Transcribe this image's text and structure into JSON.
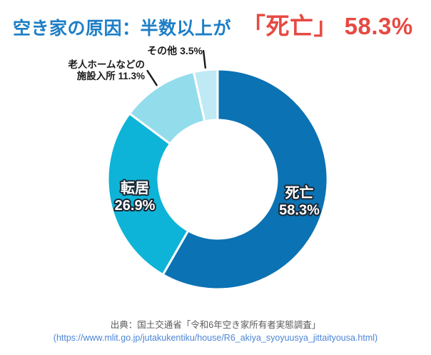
{
  "header": {
    "title_main": "空き家の原因：半数以上が",
    "title_highlight": "「死亡」 58.3%",
    "title_main_color": "#1d7ec6",
    "title_highlight_color": "#e64a42"
  },
  "chart_data": {
    "type": "pie",
    "subtype": "donut",
    "title": "空き家の原因",
    "unit": "%",
    "start_angle_deg": 0,
    "clockwise": true,
    "donut_hole_ratio": 0.54,
    "slice_gap_color": "#ffffff",
    "leader_line_color": "#1a1a1a",
    "inner_label_text_color": "#ffffff",
    "inner_label_outline_color": "#1a2733",
    "slices": [
      {
        "label": "死亡",
        "value": 58.3,
        "pct_label": "58.3%",
        "color": "#0b72b3",
        "label_inside": true
      },
      {
        "label": "転居",
        "value": 26.9,
        "pct_label": "26.9%",
        "color": "#0db4d7",
        "label_inside": true
      },
      {
        "label": "老人ホームなどの施設入所",
        "value": 11.3,
        "pct_label": "11.3%",
        "color": "#93dcec",
        "label_inside": false
      },
      {
        "label": "その他",
        "value": 3.5,
        "pct_label": "3.5%",
        "color": "#bfe9f4",
        "label_inside": false
      }
    ],
    "external_labels": [
      {
        "for": "その他",
        "lines": [
          "その他 3.5%"
        ]
      },
      {
        "for": "老人ホームなどの施設入所",
        "lines": [
          "老人ホームなどの",
          "施設入所 11.3%"
        ]
      }
    ]
  },
  "source": {
    "line1": "出典：国土交通省「令和6年空き家所有者実態調査」",
    "line2": "(https://www.mlit.go.jp/jutakukentiku/house/R6_akiya_syoyuusya_jittaityousa.html)"
  }
}
